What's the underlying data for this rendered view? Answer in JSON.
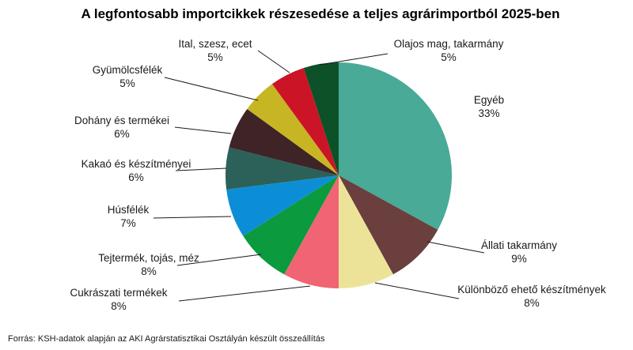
{
  "chart_data": {
    "type": "pie",
    "title": "A legfontosabb importcikkek részesedése a teljes agrárimportból 2025-ben",
    "source": "Forrás: KSH-adatok alapján az AKI Agrárstatisztikai Osztályán készült összeállítás",
    "slices": [
      {
        "label": "Egyéb",
        "value": 33,
        "value_label": "33%",
        "color": "#48AA97"
      },
      {
        "label": "Állati takarmány",
        "value": 9,
        "value_label": "9%",
        "color": "#6B3F3E"
      },
      {
        "label": "Különböző ehető készítmények",
        "value": 8,
        "value_label": "8%",
        "color": "#ECE399"
      },
      {
        "label": "Cukrászati termékek",
        "value": 8,
        "value_label": "8%",
        "color": "#F06474"
      },
      {
        "label": "Tejtermék, tojás, méz",
        "value": 8,
        "value_label": "8%",
        "color": "#0B9A3D"
      },
      {
        "label": "Húsfélék",
        "value": 7,
        "value_label": "7%",
        "color": "#0C8ED6"
      },
      {
        "label": "Kakaó és készítményei",
        "value": 6,
        "value_label": "6%",
        "color": "#2B6158"
      },
      {
        "label": "Dohány és termékei",
        "value": 6,
        "value_label": "6%",
        "color": "#3E2426"
      },
      {
        "label": "Gyümölcsfélék",
        "value": 5,
        "value_label": "5%",
        "color": "#C8B524"
      },
      {
        "label": "Ital, szesz, ecet",
        "value": 5,
        "value_label": "5%",
        "color": "#CC1427"
      },
      {
        "label": "Olajos mag, takarmány",
        "value": 5,
        "value_label": "5%",
        "color": "#0C5127"
      }
    ]
  }
}
